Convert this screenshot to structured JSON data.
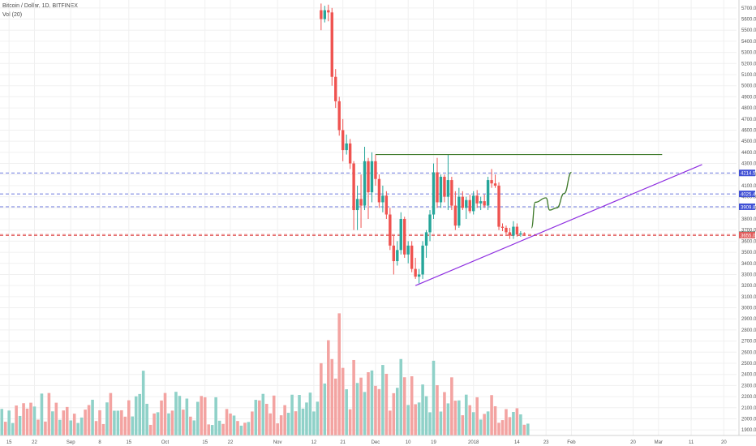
{
  "header": {
    "symbol_line": "Bitcoin / Dollar, 1D, BITFINEX",
    "volume_line": "Vol (20)"
  },
  "chart_data": {
    "type": "candlestick",
    "symbol": "Bitcoin / Dollar",
    "interval": "1D",
    "exchange": "BITFINEX",
    "ylim": [
      1850,
      5750
    ],
    "price_ticks": [
      1900,
      2000,
      2100,
      2200,
      2300,
      2400,
      2500,
      2600,
      2700,
      2800,
      2900,
      3000,
      3100,
      3200,
      3300,
      3400,
      3500,
      3600,
      3700,
      3800,
      3900,
      4000,
      4100,
      4200,
      4300,
      4400,
      4500,
      4600,
      4700,
      4800,
      4900,
      5000,
      5100,
      5200,
      5300,
      5400,
      5500,
      5600,
      5700
    ],
    "x_axis_labels": [
      {
        "day": 2,
        "label": "15"
      },
      {
        "day": 9,
        "label": "22"
      },
      {
        "day": 19,
        "label": "Sep"
      },
      {
        "day": 27,
        "label": "8"
      },
      {
        "day": 35,
        "label": "15"
      },
      {
        "day": 45,
        "label": "Oct"
      },
      {
        "day": 56,
        "label": "15"
      },
      {
        "day": 63,
        "label": "22"
      },
      {
        "day": 76,
        "label": "Nov"
      },
      {
        "day": 86,
        "label": "12"
      },
      {
        "day": 94,
        "label": "21"
      },
      {
        "day": 103,
        "label": "Dec"
      },
      {
        "day": 112,
        "label": "10"
      },
      {
        "day": 119,
        "label": "19"
      },
      {
        "day": 130,
        "label": "2018"
      },
      {
        "day": 142,
        "label": "14"
      },
      {
        "day": 150,
        "label": "23"
      },
      {
        "day": 157,
        "label": "Feb"
      },
      {
        "day": 174,
        "label": "20"
      },
      {
        "day": 181,
        "label": "Mar"
      },
      {
        "day": 190,
        "label": "11"
      },
      {
        "day": 199,
        "label": "20"
      }
    ],
    "price_badges": [
      {
        "value": 4214.5,
        "label": "4214.5",
        "color": "#3f4fd4",
        "text_color": "#ffffff"
      },
      {
        "value": 4025.4,
        "label": "4025.4",
        "color": "#3f4fd4",
        "text_color": "#ffffff"
      },
      {
        "value": 3909.8,
        "label": "3909.8",
        "color": "#3f4fd4",
        "text_color": "#ffffff"
      },
      {
        "value": 3658.0,
        "label": "3658.0",
        "color": "#3a7a6a",
        "text_color": "#ffffff"
      },
      {
        "value": 3655.0,
        "label": "3655.0",
        "color": "#e05a5a",
        "text_color": "#ffffff"
      }
    ],
    "horizontal_levels": [
      {
        "value": 4214.5,
        "style": "dashed",
        "color": "#3f4fd4"
      },
      {
        "value": 4025.4,
        "style": "dashed",
        "color": "#3f4fd4"
      },
      {
        "value": 3909.8,
        "style": "dashed",
        "color": "#3f4fd4"
      },
      {
        "value": 3660.0,
        "style": "dashed",
        "color": "#e05a5a"
      },
      {
        "value": 3650.0,
        "style": "dashed",
        "color": "#e05a5a"
      }
    ],
    "drawings": [
      {
        "kind": "resistance_line",
        "color": "#3f7a2a",
        "from": {
          "day": 103,
          "price": 4380
        },
        "to": {
          "day": 182,
          "price": 4380
        }
      },
      {
        "kind": "trend_line",
        "color": "#8e2ee0",
        "from": {
          "day": 114,
          "price": 3200
        },
        "to": {
          "day": 193,
          "price": 4290
        }
      },
      {
        "kind": "projection_path",
        "color": "#3f7a2a",
        "points": [
          {
            "day": 146,
            "price": 3720
          },
          {
            "day": 147,
            "price": 3950
          },
          {
            "day": 150,
            "price": 3990
          },
          {
            "day": 151,
            "price": 3880
          },
          {
            "day": 153,
            "price": 3900
          },
          {
            "day": 155,
            "price": 4030
          },
          {
            "day": 157,
            "price": 4220
          }
        ]
      }
    ],
    "colors": {
      "up": "#26a69a",
      "down": "#ef5350",
      "up_volume": "#8fd1c8",
      "down_volume": "#f3a3a1",
      "grid": "#f0f0f0"
    },
    "candles": [
      {
        "day": 88,
        "o": 5680,
        "h": 5740,
        "l": 5500,
        "c": 5600
      },
      {
        "day": 89,
        "o": 5600,
        "h": 5720,
        "l": 5570,
        "c": 5680
      },
      {
        "day": 90,
        "o": 5680,
        "h": 5730,
        "l": 5580,
        "c": 5660
      },
      {
        "day": 91,
        "o": 5660,
        "h": 5700,
        "l": 5000,
        "c": 5080
      },
      {
        "day": 92,
        "o": 5080,
        "h": 5150,
        "l": 4800,
        "c": 4860
      },
      {
        "day": 93,
        "o": 4860,
        "h": 4900,
        "l": 4550,
        "c": 4600
      },
      {
        "day": 94,
        "o": 4600,
        "h": 4700,
        "l": 4320,
        "c": 4420
      },
      {
        "day": 95,
        "o": 4420,
        "h": 4560,
        "l": 4380,
        "c": 4480
      },
      {
        "day": 96,
        "o": 4480,
        "h": 4520,
        "l": 4250,
        "c": 4300
      },
      {
        "day": 97,
        "o": 4300,
        "h": 4320,
        "l": 3700,
        "c": 3880
      },
      {
        "day": 98,
        "o": 3880,
        "h": 4100,
        "l": 3700,
        "c": 3980
      },
      {
        "day": 99,
        "o": 3980,
        "h": 4200,
        "l": 3720,
        "c": 3920
      },
      {
        "day": 100,
        "o": 3920,
        "h": 4450,
        "l": 3880,
        "c": 4320
      },
      {
        "day": 101,
        "o": 4320,
        "h": 4350,
        "l": 3800,
        "c": 4040
      },
      {
        "day": 102,
        "o": 4040,
        "h": 4400,
        "l": 3950,
        "c": 4320
      },
      {
        "day": 103,
        "o": 4320,
        "h": 4380,
        "l": 4100,
        "c": 4160
      },
      {
        "day": 104,
        "o": 4160,
        "h": 4200,
        "l": 3900,
        "c": 3950
      },
      {
        "day": 105,
        "o": 3950,
        "h": 4100,
        "l": 3860,
        "c": 4010
      },
      {
        "day": 106,
        "o": 4010,
        "h": 4050,
        "l": 3800,
        "c": 3840
      },
      {
        "day": 107,
        "o": 3840,
        "h": 3900,
        "l": 3520,
        "c": 3560
      },
      {
        "day": 108,
        "o": 3560,
        "h": 3650,
        "l": 3300,
        "c": 3420
      },
      {
        "day": 109,
        "o": 3420,
        "h": 3600,
        "l": 3380,
        "c": 3520
      },
      {
        "day": 110,
        "o": 3520,
        "h": 3860,
        "l": 3480,
        "c": 3800
      },
      {
        "day": 111,
        "o": 3800,
        "h": 3820,
        "l": 3450,
        "c": 3480
      },
      {
        "day": 112,
        "o": 3480,
        "h": 3600,
        "l": 3400,
        "c": 3560
      },
      {
        "day": 113,
        "o": 3560,
        "h": 3600,
        "l": 3320,
        "c": 3350
      },
      {
        "day": 114,
        "o": 3350,
        "h": 3450,
        "l": 3260,
        "c": 3280
      },
      {
        "day": 115,
        "o": 3280,
        "h": 3350,
        "l": 3220,
        "c": 3300
      },
      {
        "day": 116,
        "o": 3300,
        "h": 3600,
        "l": 3260,
        "c": 3560
      },
      {
        "day": 117,
        "o": 3560,
        "h": 3700,
        "l": 3450,
        "c": 3680
      },
      {
        "day": 118,
        "o": 3680,
        "h": 3880,
        "l": 3600,
        "c": 3840
      },
      {
        "day": 119,
        "o": 3840,
        "h": 4300,
        "l": 3800,
        "c": 4220
      },
      {
        "day": 120,
        "o": 4220,
        "h": 4350,
        "l": 3900,
        "c": 3950
      },
      {
        "day": 121,
        "o": 3950,
        "h": 4200,
        "l": 3900,
        "c": 4180
      },
      {
        "day": 122,
        "o": 4180,
        "h": 4200,
        "l": 3950,
        "c": 4000
      },
      {
        "day": 123,
        "o": 4000,
        "h": 4380,
        "l": 3880,
        "c": 4150
      },
      {
        "day": 124,
        "o": 4150,
        "h": 4180,
        "l": 3880,
        "c": 3920
      },
      {
        "day": 125,
        "o": 3920,
        "h": 4050,
        "l": 3700,
        "c": 3740
      },
      {
        "day": 126,
        "o": 3740,
        "h": 4080,
        "l": 3720,
        "c": 4000
      },
      {
        "day": 127,
        "o": 4000,
        "h": 4050,
        "l": 3880,
        "c": 3900
      },
      {
        "day": 128,
        "o": 3900,
        "h": 4000,
        "l": 3800,
        "c": 3970
      },
      {
        "day": 129,
        "o": 3970,
        "h": 4020,
        "l": 3850,
        "c": 3870
      },
      {
        "day": 130,
        "o": 3870,
        "h": 4050,
        "l": 3840,
        "c": 4010
      },
      {
        "day": 131,
        "o": 4010,
        "h": 4060,
        "l": 3900,
        "c": 3940
      },
      {
        "day": 132,
        "o": 3940,
        "h": 4000,
        "l": 3880,
        "c": 3960
      },
      {
        "day": 133,
        "o": 3960,
        "h": 4020,
        "l": 3900,
        "c": 3920
      },
      {
        "day": 134,
        "o": 3920,
        "h": 4180,
        "l": 3880,
        "c": 4150
      },
      {
        "day": 135,
        "o": 4150,
        "h": 4250,
        "l": 4080,
        "c": 4120
      },
      {
        "day": 136,
        "o": 4120,
        "h": 4200,
        "l": 4080,
        "c": 4100
      },
      {
        "day": 137,
        "o": 4100,
        "h": 4130,
        "l": 3700,
        "c": 3730
      },
      {
        "day": 138,
        "o": 3730,
        "h": 3760,
        "l": 3690,
        "c": 3720
      },
      {
        "day": 139,
        "o": 3720,
        "h": 3740,
        "l": 3660,
        "c": 3680
      },
      {
        "day": 140,
        "o": 3680,
        "h": 3720,
        "l": 3620,
        "c": 3650
      },
      {
        "day": 141,
        "o": 3650,
        "h": 3780,
        "l": 3620,
        "c": 3730
      },
      {
        "day": 142,
        "o": 3730,
        "h": 3760,
        "l": 3640,
        "c": 3660
      },
      {
        "day": 143,
        "o": 3660,
        "h": 3690,
        "l": 3640,
        "c": 3670
      },
      {
        "day": 144,
        "o": 3670,
        "h": 3680,
        "l": 3650,
        "c": 3658
      }
    ],
    "volume_visible": true
  }
}
